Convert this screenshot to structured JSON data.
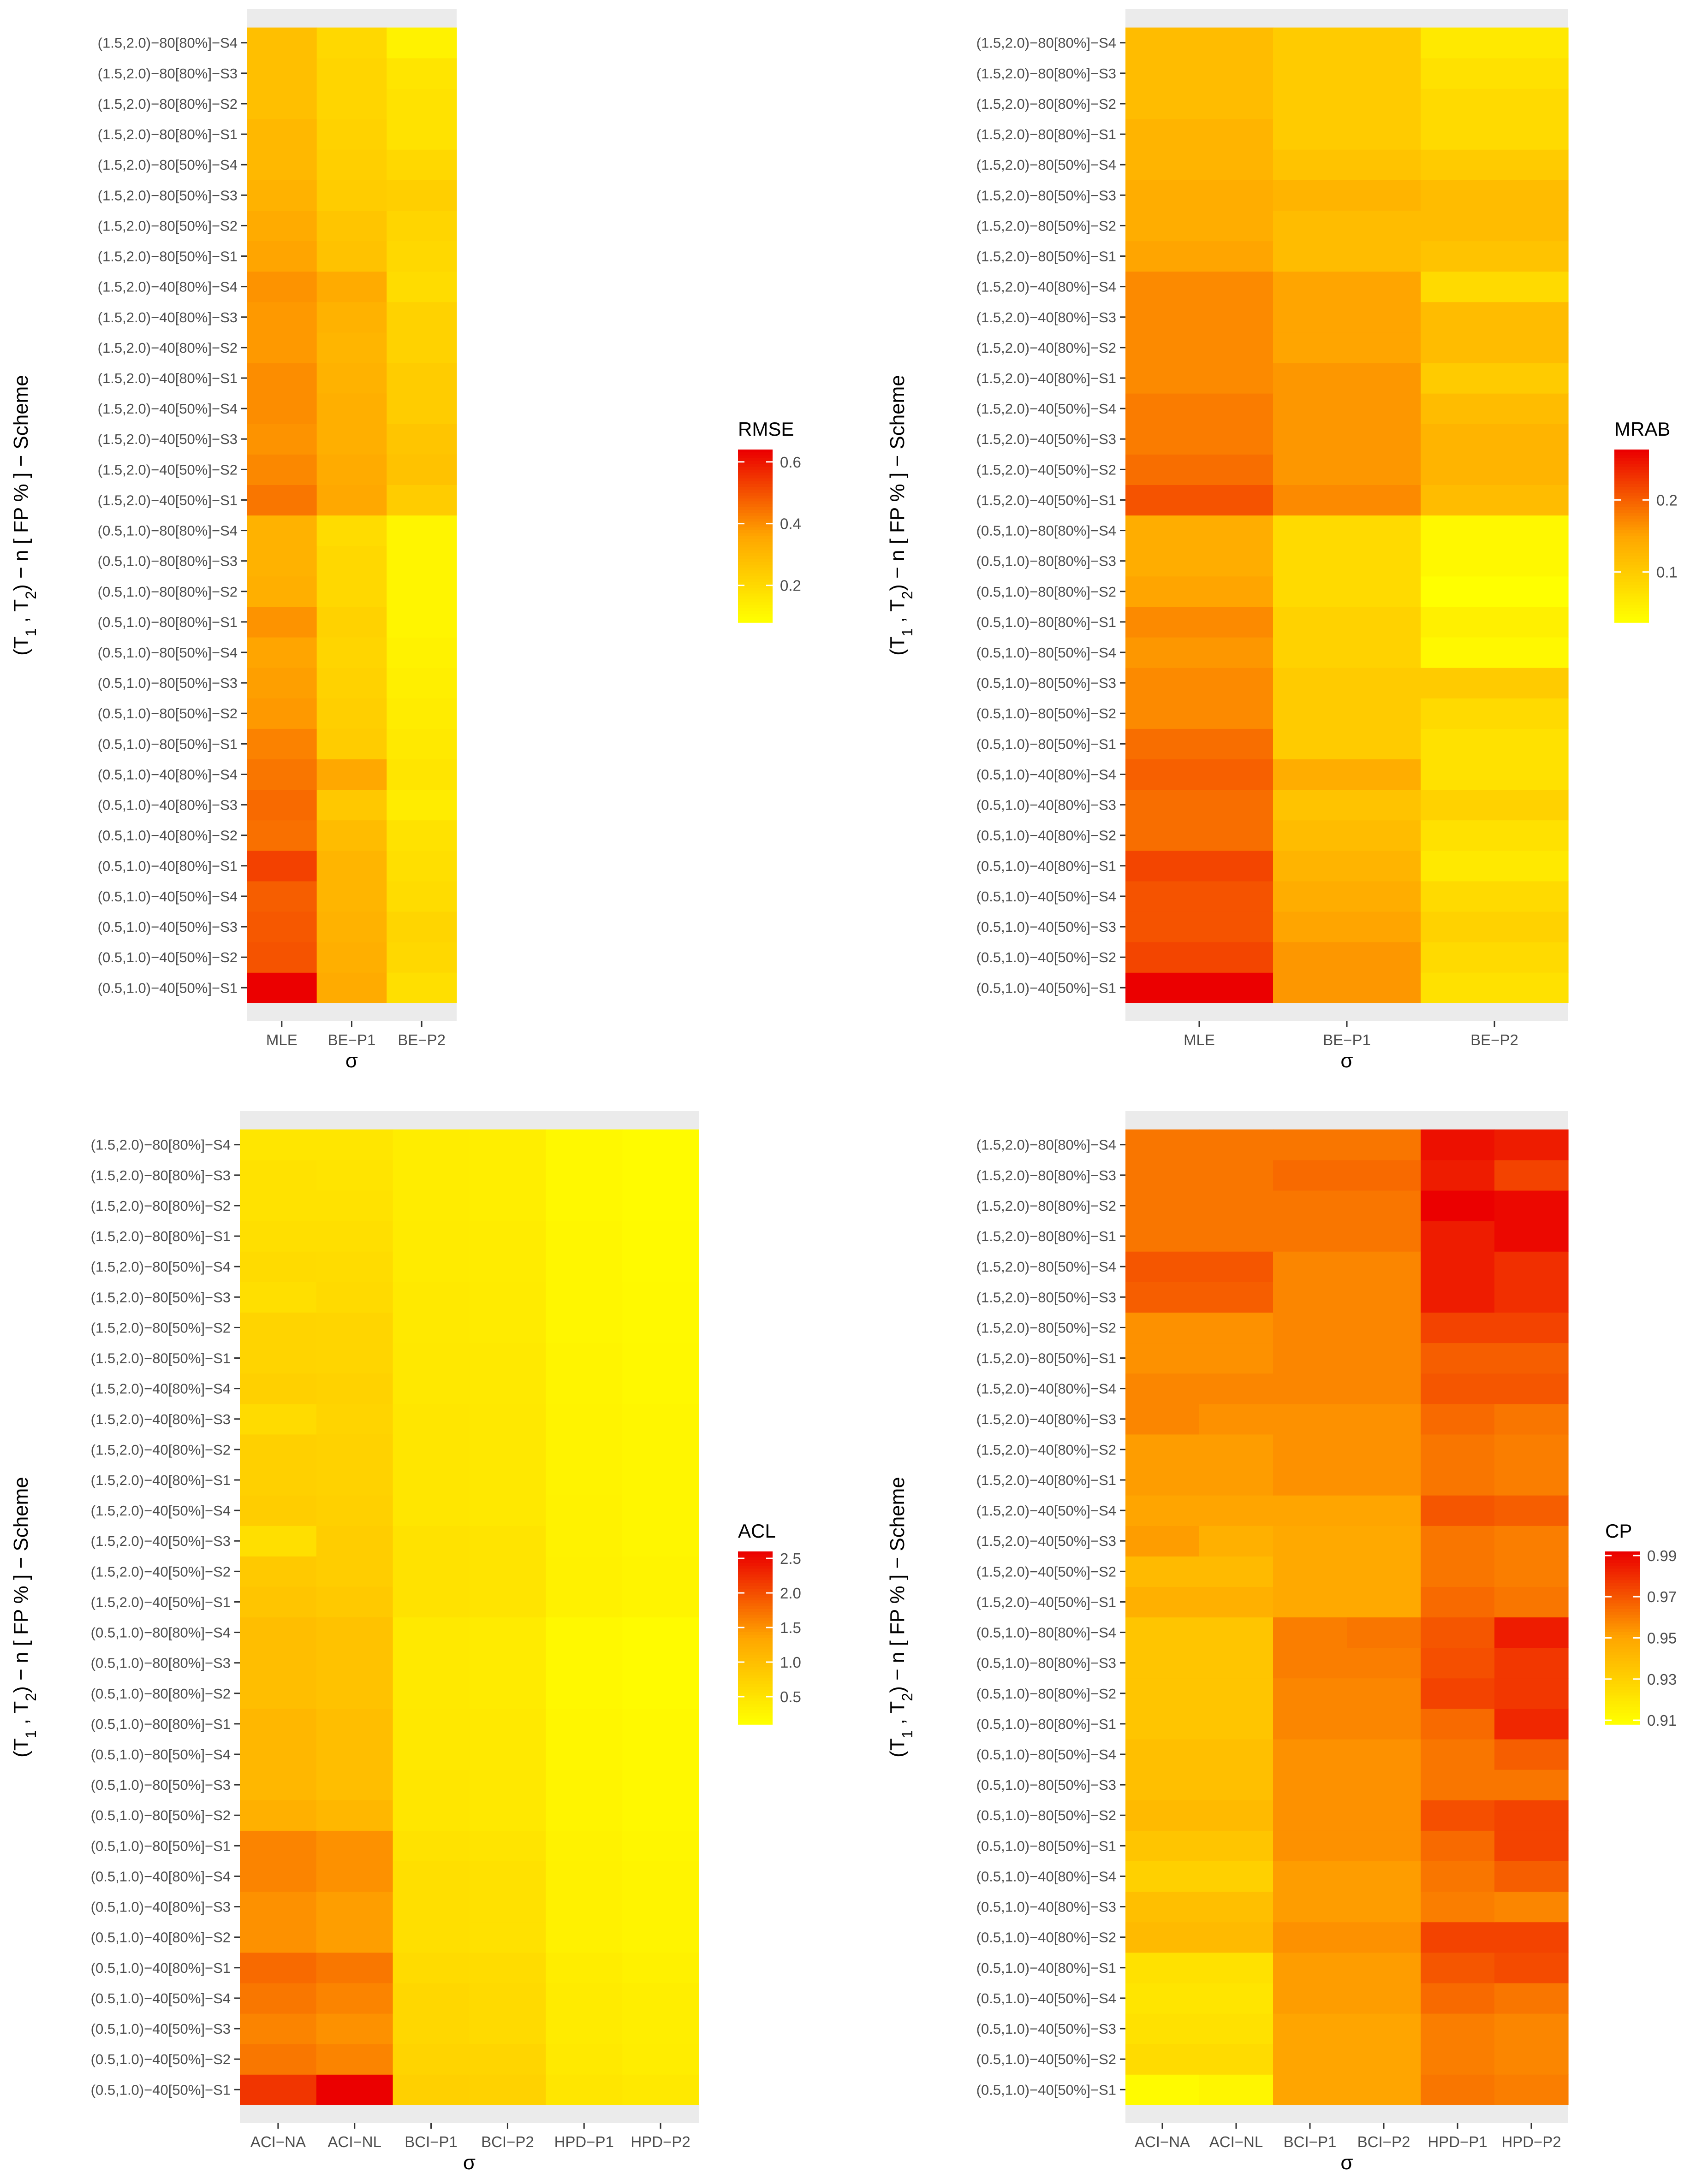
{
  "rows": [
    "(0.5,1.0)−40[50%]−S1",
    "(0.5,1.0)−40[50%]−S2",
    "(0.5,1.0)−40[50%]−S3",
    "(0.5,1.0)−40[50%]−S4",
    "(0.5,1.0)−40[80%]−S1",
    "(0.5,1.0)−40[80%]−S2",
    "(0.5,1.0)−40[80%]−S3",
    "(0.5,1.0)−40[80%]−S4",
    "(0.5,1.0)−80[50%]−S1",
    "(0.5,1.0)−80[50%]−S2",
    "(0.5,1.0)−80[50%]−S3",
    "(0.5,1.0)−80[50%]−S4",
    "(0.5,1.0)−80[80%]−S1",
    "(0.5,1.0)−80[80%]−S2",
    "(0.5,1.0)−80[80%]−S3",
    "(0.5,1.0)−80[80%]−S4",
    "(1.5,2.0)−40[50%]−S1",
    "(1.5,2.0)−40[50%]−S2",
    "(1.5,2.0)−40[50%]−S3",
    "(1.5,2.0)−40[50%]−S4",
    "(1.5,2.0)−40[80%]−S1",
    "(1.5,2.0)−40[80%]−S2",
    "(1.5,2.0)−40[80%]−S3",
    "(1.5,2.0)−40[80%]−S4",
    "(1.5,2.0)−80[50%]−S1",
    "(1.5,2.0)−80[50%]−S2",
    "(1.5,2.0)−80[50%]−S3",
    "(1.5,2.0)−80[50%]−S4",
    "(1.5,2.0)−80[80%]−S1",
    "(1.5,2.0)−80[80%]−S2",
    "(1.5,2.0)−80[80%]−S3",
    "(1.5,2.0)−80[80%]−S4"
  ],
  "chart_data": [
    {
      "id": "rmse",
      "type": "heatmap",
      "title": "",
      "xlabel": "σ",
      "ylabel_parts": [
        "(T",
        "1",
        " , T",
        "2",
        ") − n [ FP % ] − Scheme"
      ],
      "legend_title": "RMSE",
      "legend_ticks": [
        0.2,
        0.4,
        0.6
      ],
      "tick_labels": [
        "0.2",
        "0.4",
        "0.6"
      ],
      "range": [
        0.08,
        0.64
      ],
      "columns": [
        "MLE",
        "BE−P1",
        "BE−P2"
      ],
      "values": [
        [
          0.64,
          0.34,
          0.18
        ],
        [
          0.5,
          0.33,
          0.2
        ],
        [
          0.49,
          0.32,
          0.21
        ],
        [
          0.48,
          0.31,
          0.19
        ],
        [
          0.53,
          0.31,
          0.18
        ],
        [
          0.45,
          0.29,
          0.17
        ],
        [
          0.46,
          0.25,
          0.14
        ],
        [
          0.44,
          0.35,
          0.16
        ],
        [
          0.42,
          0.24,
          0.15
        ],
        [
          0.38,
          0.23,
          0.14
        ],
        [
          0.37,
          0.22,
          0.13
        ],
        [
          0.36,
          0.21,
          0.12
        ],
        [
          0.39,
          0.22,
          0.11
        ],
        [
          0.33,
          0.2,
          0.11
        ],
        [
          0.32,
          0.2,
          0.11
        ],
        [
          0.32,
          0.19,
          0.11
        ],
        [
          0.44,
          0.35,
          0.24
        ],
        [
          0.41,
          0.34,
          0.27
        ],
        [
          0.39,
          0.33,
          0.26
        ],
        [
          0.4,
          0.33,
          0.24
        ],
        [
          0.4,
          0.32,
          0.24
        ],
        [
          0.38,
          0.31,
          0.22
        ],
        [
          0.38,
          0.32,
          0.22
        ],
        [
          0.39,
          0.34,
          0.19
        ],
        [
          0.36,
          0.27,
          0.2
        ],
        [
          0.34,
          0.26,
          0.21
        ],
        [
          0.32,
          0.24,
          0.23
        ],
        [
          0.3,
          0.23,
          0.2
        ],
        [
          0.3,
          0.22,
          0.17
        ],
        [
          0.28,
          0.21,
          0.17
        ],
        [
          0.28,
          0.21,
          0.16
        ],
        [
          0.28,
          0.2,
          0.12
        ]
      ]
    },
    {
      "id": "mrab",
      "type": "heatmap",
      "title": "",
      "xlabel": "σ",
      "ylabel_parts": [
        "(T",
        "1",
        " , T",
        "2",
        ") − n [ FP % ] − Scheme"
      ],
      "legend_title": "MRAB",
      "legend_ticks": [
        0.1,
        0.2
      ],
      "tick_labels": [
        "0.1",
        "0.2"
      ],
      "range": [
        0.03,
        0.27
      ],
      "columns": [
        "MLE",
        "BE−P1",
        "BE−P2"
      ],
      "values": [
        [
          0.27,
          0.16,
          0.07
        ],
        [
          0.22,
          0.16,
          0.08
        ],
        [
          0.21,
          0.15,
          0.09
        ],
        [
          0.21,
          0.14,
          0.08
        ],
        [
          0.22,
          0.13,
          0.06
        ],
        [
          0.19,
          0.12,
          0.07
        ],
        [
          0.19,
          0.11,
          0.09
        ],
        [
          0.2,
          0.14,
          0.07
        ],
        [
          0.19,
          0.1,
          0.07
        ],
        [
          0.17,
          0.1,
          0.08
        ],
        [
          0.17,
          0.1,
          0.1
        ],
        [
          0.16,
          0.09,
          0.04
        ],
        [
          0.17,
          0.09,
          0.05
        ],
        [
          0.15,
          0.08,
          0.03
        ],
        [
          0.14,
          0.08,
          0.04
        ],
        [
          0.14,
          0.08,
          0.04
        ],
        [
          0.21,
          0.17,
          0.12
        ],
        [
          0.19,
          0.16,
          0.13
        ],
        [
          0.18,
          0.16,
          0.13
        ],
        [
          0.18,
          0.16,
          0.12
        ],
        [
          0.17,
          0.16,
          0.1
        ],
        [
          0.17,
          0.15,
          0.12
        ],
        [
          0.17,
          0.15,
          0.12
        ],
        [
          0.17,
          0.15,
          0.08
        ],
        [
          0.15,
          0.12,
          0.11
        ],
        [
          0.14,
          0.12,
          0.12
        ],
        [
          0.14,
          0.13,
          0.12
        ],
        [
          0.13,
          0.11,
          0.1
        ],
        [
          0.13,
          0.1,
          0.08
        ],
        [
          0.12,
          0.1,
          0.08
        ],
        [
          0.12,
          0.1,
          0.07
        ],
        [
          0.12,
          0.1,
          0.06
        ]
      ]
    },
    {
      "id": "acl",
      "type": "heatmap",
      "title": "",
      "xlabel": "σ",
      "ylabel_parts": [
        "(T",
        "1",
        " , T",
        "2",
        ") − n [ FP % ] − Scheme"
      ],
      "legend_title": "ACL",
      "legend_ticks": [
        0.5,
        1.0,
        1.5,
        2.0,
        2.5
      ],
      "tick_labels": [
        "0.5",
        "1.0",
        "1.5",
        "2.0",
        "2.5"
      ],
      "range": [
        0.1,
        2.6
      ],
      "columns": [
        "ACI−NA",
        "ACI−NL",
        "BCI−P1",
        "BCI−P2",
        "HPD−P1",
        "HPD−P2"
      ],
      "values": [
        [
          2.2,
          2.6,
          0.75,
          0.72,
          0.45,
          0.4
        ],
        [
          1.7,
          1.6,
          0.7,
          0.68,
          0.4,
          0.35
        ],
        [
          1.6,
          1.5,
          0.65,
          0.62,
          0.38,
          0.33
        ],
        [
          1.7,
          1.6,
          0.65,
          0.62,
          0.38,
          0.33
        ],
        [
          1.8,
          1.7,
          0.6,
          0.58,
          0.35,
          0.3
        ],
        [
          1.5,
          1.4,
          0.55,
          0.52,
          0.3,
          0.25
        ],
        [
          1.5,
          1.4,
          0.55,
          0.52,
          0.3,
          0.25
        ],
        [
          1.6,
          1.5,
          0.55,
          0.52,
          0.3,
          0.25
        ],
        [
          1.6,
          1.5,
          0.5,
          0.48,
          0.28,
          0.22
        ],
        [
          1.2,
          1.1,
          0.45,
          0.42,
          0.25,
          0.2
        ],
        [
          1.1,
          1.0,
          0.45,
          0.42,
          0.25,
          0.2
        ],
        [
          1.1,
          1.0,
          0.42,
          0.4,
          0.22,
          0.18
        ],
        [
          1.1,
          1.0,
          0.42,
          0.4,
          0.22,
          0.18
        ],
        [
          1.0,
          0.95,
          0.4,
          0.38,
          0.2,
          0.15
        ],
        [
          1.0,
          0.95,
          0.4,
          0.38,
          0.2,
          0.15
        ],
        [
          1.0,
          0.95,
          0.4,
          0.38,
          0.2,
          0.15
        ],
        [
          0.9,
          0.85,
          0.5,
          0.48,
          0.3,
          0.25
        ],
        [
          0.85,
          0.8,
          0.5,
          0.48,
          0.3,
          0.25
        ],
        [
          0.55,
          0.8,
          0.5,
          0.48,
          0.28,
          0.23
        ],
        [
          0.8,
          0.75,
          0.45,
          0.42,
          0.28,
          0.23
        ],
        [
          0.75,
          0.72,
          0.45,
          0.42,
          0.26,
          0.22
        ],
        [
          0.75,
          0.72,
          0.45,
          0.42,
          0.26,
          0.22
        ],
        [
          0.6,
          0.7,
          0.45,
          0.42,
          0.26,
          0.22
        ],
        [
          0.75,
          0.72,
          0.42,
          0.4,
          0.25,
          0.2
        ],
        [
          0.7,
          0.68,
          0.42,
          0.4,
          0.25,
          0.2
        ],
        [
          0.7,
          0.68,
          0.4,
          0.38,
          0.23,
          0.18
        ],
        [
          0.55,
          0.62,
          0.4,
          0.38,
          0.23,
          0.18
        ],
        [
          0.6,
          0.58,
          0.38,
          0.36,
          0.22,
          0.17
        ],
        [
          0.55,
          0.55,
          0.38,
          0.36,
          0.22,
          0.17
        ],
        [
          0.5,
          0.5,
          0.36,
          0.34,
          0.2,
          0.15
        ],
        [
          0.5,
          0.48,
          0.35,
          0.33,
          0.2,
          0.15
        ],
        [
          0.45,
          0.45,
          0.35,
          0.33,
          0.2,
          0.15
        ]
      ]
    },
    {
      "id": "cp",
      "type": "heatmap",
      "title": "",
      "xlabel": "σ",
      "ylabel_parts": [
        "(T",
        "1",
        " , T",
        "2",
        ") − n [ FP % ] − Scheme"
      ],
      "legend_title": "CP",
      "legend_ticks": [
        0.91,
        0.93,
        0.95,
        0.97,
        0.99
      ],
      "tick_labels": [
        "0.91",
        "0.93",
        "0.95",
        "0.97",
        "0.99"
      ],
      "range": [
        0.908,
        0.992
      ],
      "columns": [
        "ACI−NA",
        "ACI−NL",
        "BCI−P1",
        "BCI−P2",
        "HPD−P1",
        "HPD−P2"
      ],
      "values": [
        [
          0.91,
          0.912,
          0.95,
          0.95,
          0.962,
          0.96
        ],
        [
          0.925,
          0.925,
          0.95,
          0.95,
          0.96,
          0.958
        ],
        [
          0.922,
          0.922,
          0.95,
          0.95,
          0.96,
          0.958
        ],
        [
          0.92,
          0.92,
          0.952,
          0.952,
          0.965,
          0.962
        ],
        [
          0.922,
          0.922,
          0.952,
          0.952,
          0.97,
          0.973
        ],
        [
          0.94,
          0.94,
          0.955,
          0.955,
          0.975,
          0.975
        ],
        [
          0.938,
          0.938,
          0.952,
          0.952,
          0.96,
          0.958
        ],
        [
          0.93,
          0.93,
          0.952,
          0.952,
          0.962,
          0.968
        ],
        [
          0.935,
          0.935,
          0.955,
          0.955,
          0.965,
          0.975
        ],
        [
          0.94,
          0.94,
          0.955,
          0.955,
          0.972,
          0.975
        ],
        [
          0.938,
          0.938,
          0.955,
          0.955,
          0.962,
          0.962
        ],
        [
          0.938,
          0.938,
          0.955,
          0.955,
          0.962,
          0.968
        ],
        [
          0.935,
          0.935,
          0.958,
          0.958,
          0.965,
          0.982
        ],
        [
          0.935,
          0.935,
          0.958,
          0.958,
          0.975,
          0.978
        ],
        [
          0.935,
          0.935,
          0.96,
          0.96,
          0.972,
          0.978
        ],
        [
          0.935,
          0.935,
          0.96,
          0.962,
          0.97,
          0.985
        ],
        [
          0.945,
          0.945,
          0.948,
          0.948,
          0.965,
          0.962
        ],
        [
          0.94,
          0.94,
          0.948,
          0.948,
          0.962,
          0.96
        ],
        [
          0.952,
          0.945,
          0.948,
          0.948,
          0.962,
          0.96
        ],
        [
          0.95,
          0.95,
          0.95,
          0.95,
          0.97,
          0.968
        ],
        [
          0.952,
          0.952,
          0.955,
          0.955,
          0.962,
          0.96
        ],
        [
          0.952,
          0.952,
          0.955,
          0.955,
          0.962,
          0.96
        ],
        [
          0.958,
          0.955,
          0.955,
          0.955,
          0.965,
          0.962
        ],
        [
          0.958,
          0.958,
          0.958,
          0.958,
          0.97,
          0.97
        ],
        [
          0.955,
          0.955,
          0.958,
          0.958,
          0.968,
          0.968
        ],
        [
          0.955,
          0.955,
          0.958,
          0.958,
          0.975,
          0.975
        ],
        [
          0.968,
          0.968,
          0.958,
          0.958,
          0.985,
          0.98
        ],
        [
          0.97,
          0.97,
          0.958,
          0.958,
          0.985,
          0.98
        ],
        [
          0.962,
          0.962,
          0.962,
          0.962,
          0.985,
          0.99
        ],
        [
          0.962,
          0.962,
          0.962,
          0.962,
          0.992,
          0.99
        ],
        [
          0.962,
          0.962,
          0.965,
          0.965,
          0.985,
          0.975
        ],
        [
          0.962,
          0.962,
          0.962,
          0.962,
          0.988,
          0.985
        ]
      ]
    }
  ]
}
